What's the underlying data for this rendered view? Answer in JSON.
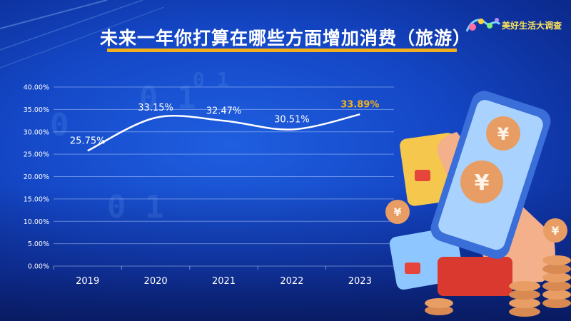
{
  "header": {
    "title": "未来一年你打算在哪些方面增加消费（旅游）",
    "brand_label": "美好生活大调查"
  },
  "colors": {
    "line": "#ffffff",
    "highlight": "#f2b01e",
    "accent": "#f2b01e"
  },
  "chart_data": {
    "type": "line",
    "categories": [
      "2019",
      "2020",
      "2021",
      "2022",
      "2023"
    ],
    "values": [
      25.75,
      33.15,
      32.47,
      30.51,
      33.89
    ],
    "data_labels": [
      "25.75%",
      "33.15%",
      "32.47%",
      "30.51%",
      "33.89%"
    ],
    "highlight_index": 4,
    "ylim": [
      0,
      40
    ],
    "yticks": [
      "0.00%",
      "5.00%",
      "10.00%",
      "15.00%",
      "20.00%",
      "25.00%",
      "30.00%",
      "35.00%",
      "40.00%"
    ],
    "ytick_values": [
      0,
      5,
      10,
      15,
      20,
      25,
      30,
      35,
      40
    ],
    "grid": true
  }
}
